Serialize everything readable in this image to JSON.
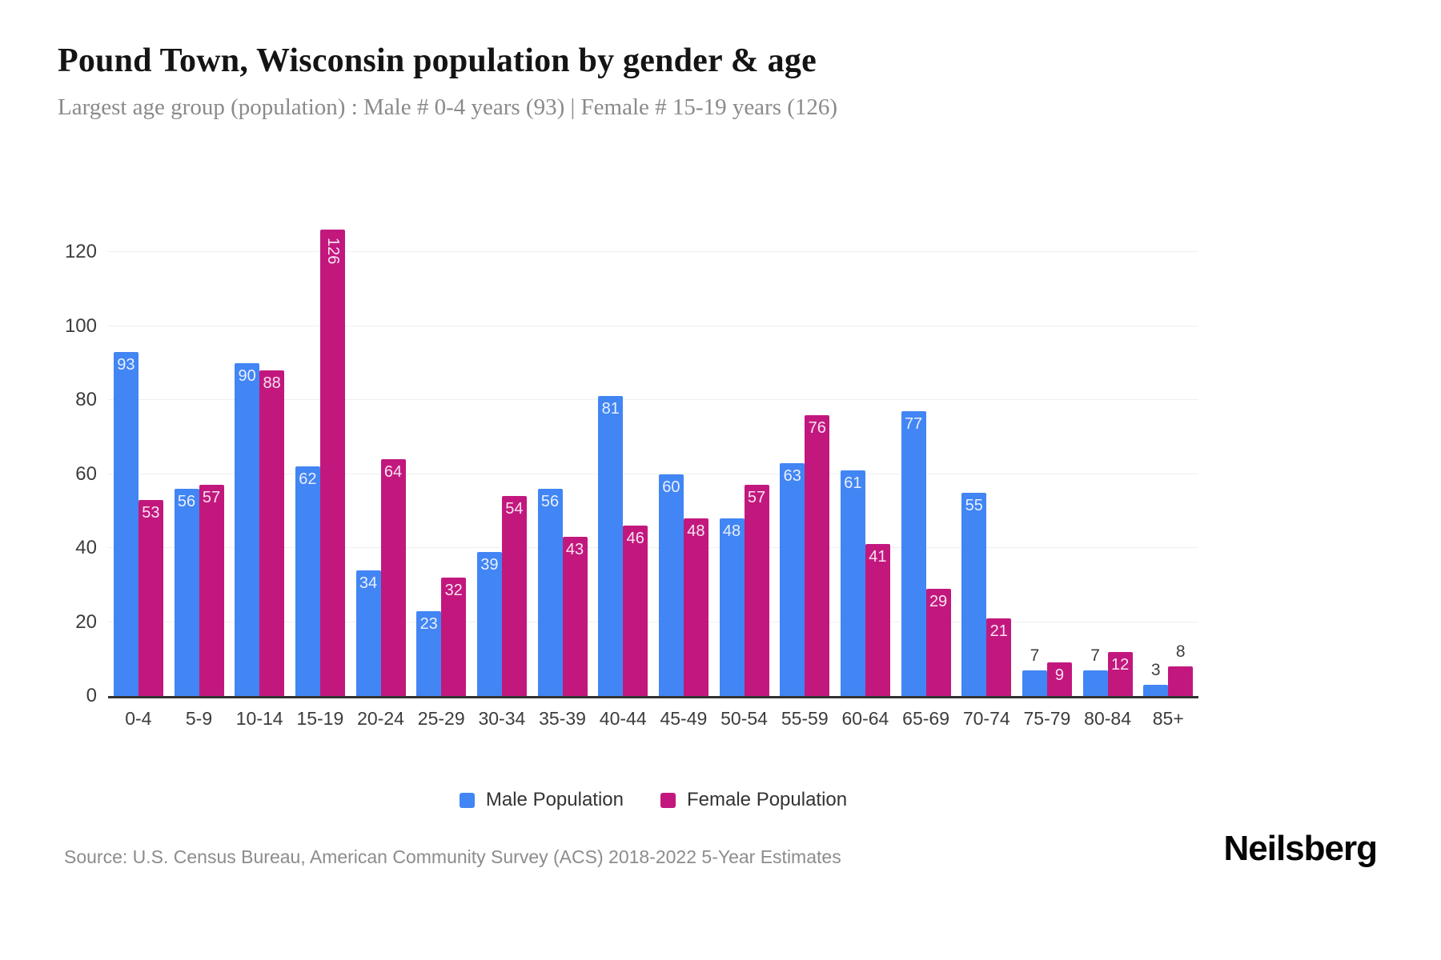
{
  "header": {
    "title": "Pound Town, Wisconsin population by gender & age",
    "subtitle": "Largest age group (population) : Male # 0-4 years (93) | Female # 15-19 years (126)"
  },
  "chart_data": {
    "type": "bar",
    "title": "Pound Town, Wisconsin population by gender & age",
    "categories": [
      "0-4",
      "5-9",
      "10-14",
      "15-19",
      "20-24",
      "25-29",
      "30-34",
      "35-39",
      "40-44",
      "45-49",
      "50-54",
      "55-59",
      "60-64",
      "65-69",
      "70-74",
      "75-79",
      "80-84",
      "85+"
    ],
    "series": [
      {
        "name": "Male Population",
        "color": "#4285f4",
        "values": [
          93,
          56,
          90,
          62,
          34,
          23,
          39,
          56,
          81,
          60,
          48,
          63,
          61,
          77,
          55,
          7,
          7,
          3
        ]
      },
      {
        "name": "Female Population",
        "color": "#c2187e",
        "values": [
          53,
          57,
          88,
          126,
          64,
          32,
          54,
          43,
          46,
          48,
          57,
          76,
          41,
          29,
          21,
          9,
          12,
          8
        ]
      }
    ],
    "xlabel": "",
    "ylabel": "",
    "ylim": [
      0,
      133
    ],
    "yticks": [
      0,
      20,
      40,
      60,
      80,
      100,
      120
    ],
    "grid": true,
    "legend_position": "bottom",
    "bar_label_color_inside": "#ffffff",
    "bar_label_color_outside": "#404040"
  },
  "footer": {
    "source": "Source: U.S. Census Bureau, American Community Survey (ACS) 2018-2022 5-Year Estimates",
    "brand": "Neilsberg"
  }
}
